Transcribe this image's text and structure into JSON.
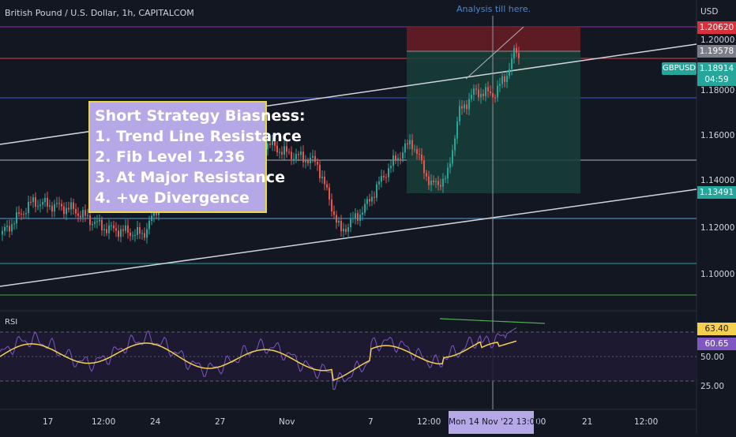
{
  "header": {
    "instrument_title": "British Pound / U.S. Dollar, 1h, CAPITALCOM",
    "currency": "USD"
  },
  "annotation": "Analysis till here.",
  "strategy_box": {
    "lines": [
      "Short Strategy Biasness:",
      "1. Trend Line Resistance",
      "2. Fib Level 1.236",
      "3. At Major Resistance",
      "4. +ve Divergence"
    ]
  },
  "price_axis": {
    "labels": [
      "1.20000",
      "1.18000",
      "1.16000",
      "1.14000",
      "1.12000",
      "1.10000"
    ],
    "tags": {
      "stop": "1.20620",
      "entry": "1.19578",
      "symbol": "GBPUSD",
      "last": "1.18914",
      "countdown": "04:59",
      "target": "1.13491"
    }
  },
  "rsi": {
    "label": "RSI",
    "axis_labels": [
      "50.00",
      "25.00"
    ],
    "tags": {
      "rsi_value": "63.40",
      "ma_value": "60.65"
    }
  },
  "time_axis": {
    "labels": [
      "17",
      "12:00",
      "24",
      "27",
      "Nov",
      "7",
      "12:00",
      "00",
      "21",
      "12:00"
    ],
    "cursor_label": "Mon 14 Nov '22   13:00"
  },
  "colors": {
    "background": "#131722",
    "up": "#26a69a",
    "down": "#ef5350",
    "rsi_line": "#7e57c2",
    "rsi_ma": "#f5d04c",
    "strategy_bg": "#b6a8e6",
    "strategy_border": "#e9d44a"
  }
}
